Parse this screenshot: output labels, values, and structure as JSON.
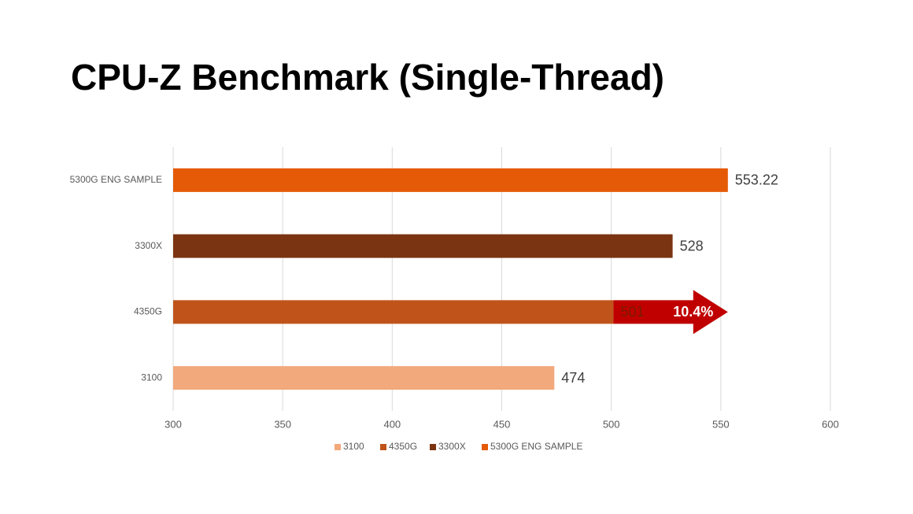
{
  "chart_data": {
    "type": "bar",
    "orientation": "horizontal",
    "title": "CPU-Z Benchmark (Single-Thread)",
    "categories": [
      "3100",
      "4350G",
      "3300X",
      "5300G ENG SAMPLE"
    ],
    "series": [
      {
        "name": "3100",
        "color": "#f2a97c",
        "values": [
          474,
          null,
          null,
          null
        ]
      },
      {
        "name": "4350G",
        "color": "#c0531a",
        "values": [
          null,
          501,
          null,
          null
        ]
      },
      {
        "name": "3300X",
        "color": "#7a3412",
        "values": [
          null,
          null,
          528,
          null
        ]
      },
      {
        "name": "5300G ENG SAMPLE",
        "color": "#e55a06",
        "values": [
          null,
          null,
          null,
          553.22
        ]
      }
    ],
    "annotation": {
      "text": "10.4%",
      "color": "#c00000"
    },
    "xlim": [
      300,
      600
    ],
    "xticks": [
      300,
      350,
      400,
      450,
      500,
      550,
      600
    ],
    "grid": true,
    "legend": "bottom"
  }
}
